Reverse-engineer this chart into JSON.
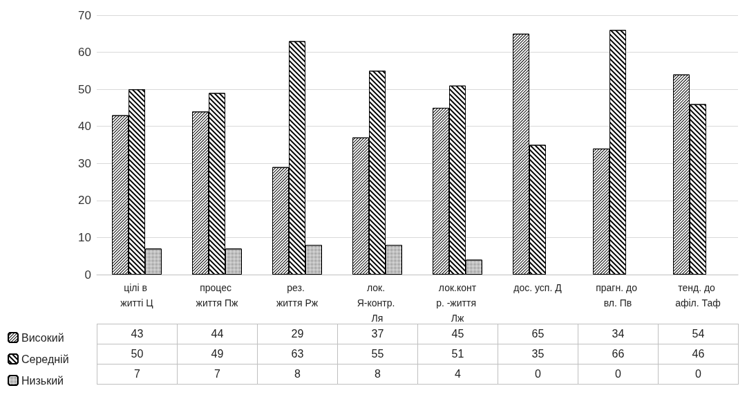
{
  "chart_data": {
    "type": "bar",
    "categories": [
      "цілі в житті Ц",
      "процес життя Пж",
      "рез. життя Рж",
      "лок. Я-контр. Ля",
      "лок.контр. -життя Лж",
      "дос. усп. Д",
      "прагн. до вл. Пв",
      "тенд. до афіл. Таф"
    ],
    "series": [
      {
        "name": "Високий",
        "color": "#ffffff",
        "values": [
          43,
          44,
          29,
          37,
          45,
          65,
          34,
          54
        ]
      },
      {
        "name": "Середній",
        "color": "#ffffff",
        "values": [
          50,
          49,
          63,
          55,
          51,
          35,
          66,
          46
        ]
      },
      {
        "name": "Низький",
        "color": "#ffffff",
        "values": [
          7,
          7,
          8,
          8,
          4,
          0,
          0,
          0
        ]
      }
    ],
    "ylim": [
      0,
      70
    ],
    "yticks": [
      0,
      10,
      20,
      30,
      40,
      50,
      60,
      70
    ],
    "grid": "y",
    "legend": "bottom left",
    "data_labels": true
  }
}
